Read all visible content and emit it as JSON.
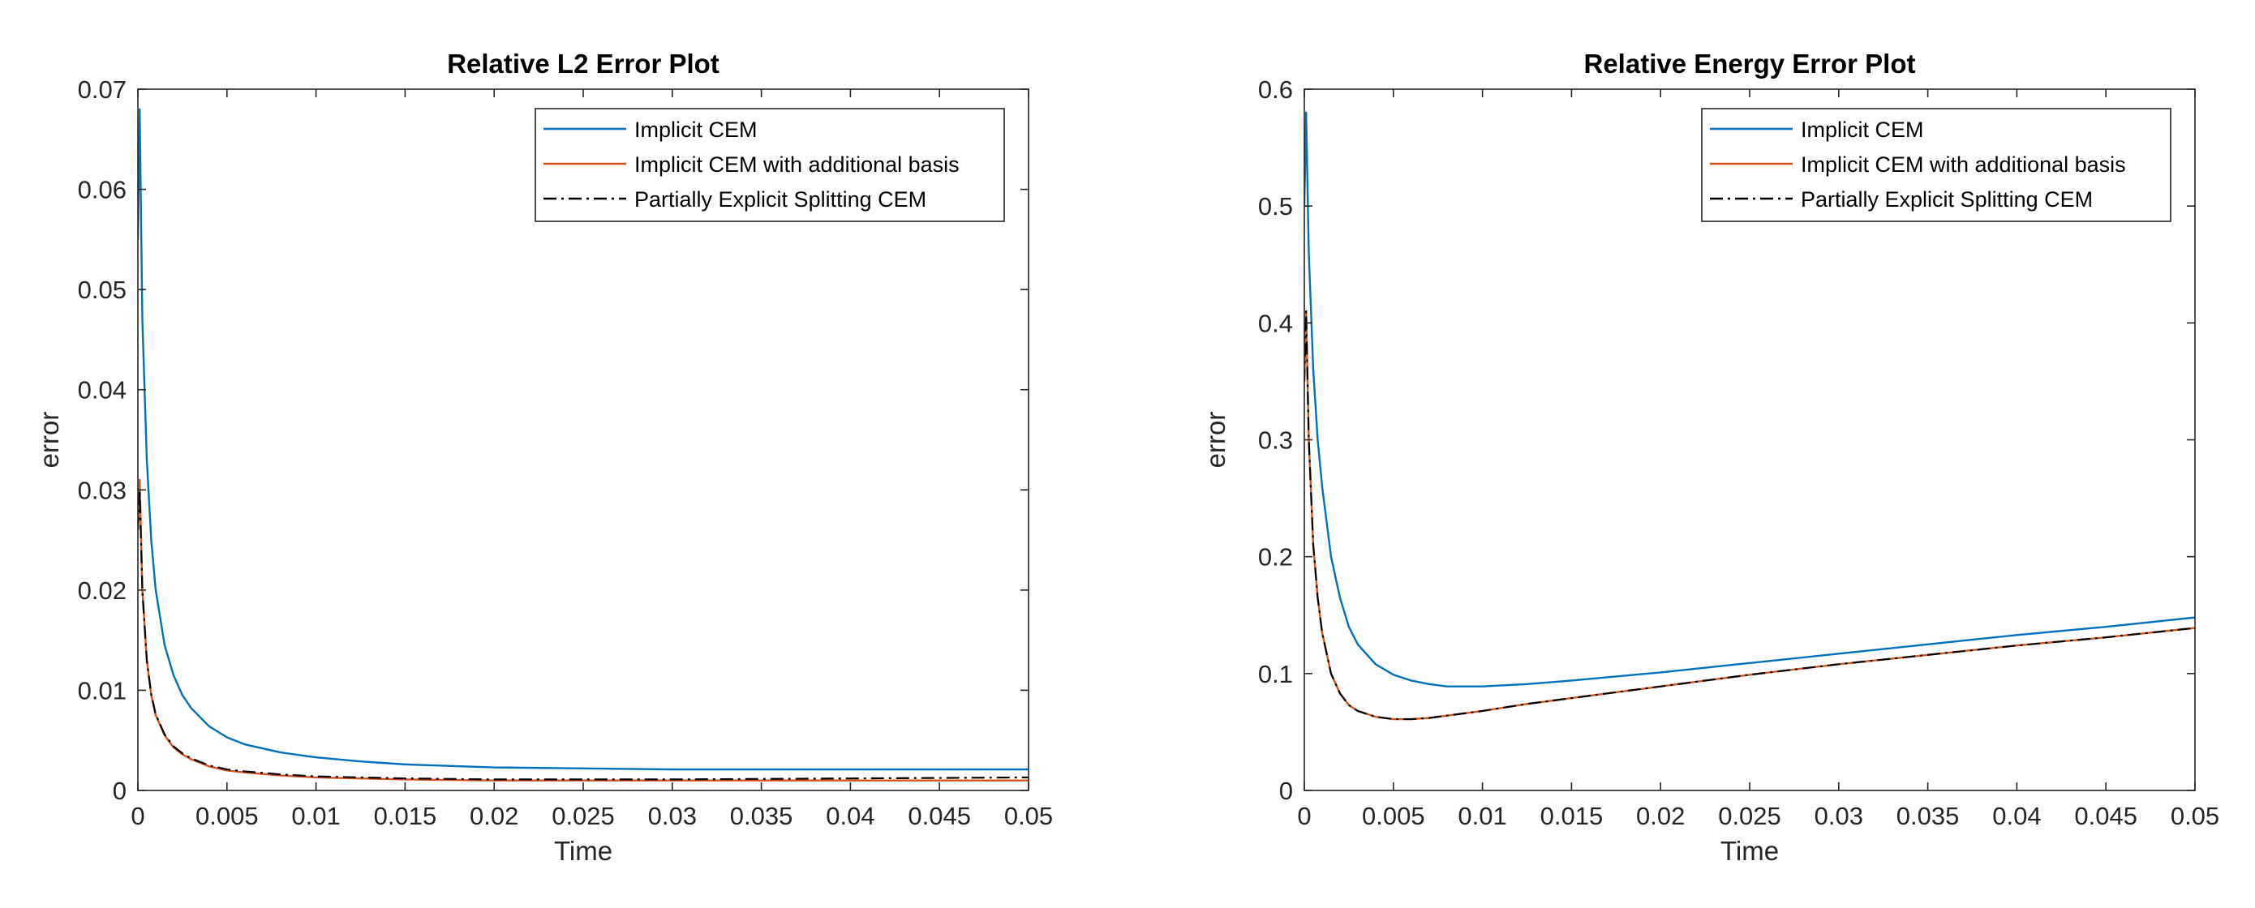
{
  "figure": {
    "charts": [
      {
        "title": "Relative L2 Error Plot",
        "xlabel": "Time",
        "ylabel": "error"
      },
      {
        "title": "Relative Energy Error Plot",
        "xlabel": "Time",
        "ylabel": "error"
      }
    ]
  },
  "chart_data": [
    {
      "type": "line",
      "title": "Relative L2 Error Plot",
      "xlabel": "Time",
      "ylabel": "error",
      "xlim": [
        0,
        0.05
      ],
      "ylim": [
        0,
        0.07
      ],
      "xticks": [
        0,
        0.005,
        0.01,
        0.015,
        0.02,
        0.025,
        0.03,
        0.035,
        0.04,
        0.045,
        0.05
      ],
      "xtick_labels": [
        "0",
        "0.005",
        "0.01",
        "0.015",
        "0.02",
        "0.025",
        "0.03",
        "0.035",
        "0.04",
        "0.045",
        "0.05"
      ],
      "yticks": [
        0,
        0.01,
        0.02,
        0.03,
        0.04,
        0.05,
        0.06,
        0.07
      ],
      "ytick_labels": [
        "0",
        "0.01",
        "0.02",
        "0.03",
        "0.04",
        "0.05",
        "0.06",
        "0.07"
      ],
      "grid": false,
      "legend_position": "top-right",
      "series": [
        {
          "name": "Implicit CEM",
          "color": "#0072BD",
          "style": "solid",
          "x": [
            0,
            0.0001,
            0.00025,
            0.0005,
            0.00075,
            0.001,
            0.0015,
            0.002,
            0.0025,
            0.003,
            0.004,
            0.005,
            0.006,
            0.008,
            0.01,
            0.0125,
            0.015,
            0.02,
            0.025,
            0.03,
            0.04,
            0.05
          ],
          "y": [
            0.055,
            0.068,
            0.047,
            0.033,
            0.025,
            0.02,
            0.0145,
            0.0115,
            0.0095,
            0.0082,
            0.0064,
            0.0053,
            0.0046,
            0.0038,
            0.0033,
            0.0029,
            0.0026,
            0.0023,
            0.0022,
            0.0021,
            0.0021,
            0.0021
          ]
        },
        {
          "name": "Implicit CEM with additional basis",
          "color": "#D95319",
          "style": "solid",
          "x": [
            0,
            0.0001,
            0.00025,
            0.0005,
            0.00075,
            0.001,
            0.0015,
            0.002,
            0.0025,
            0.003,
            0.004,
            0.005,
            0.006,
            0.008,
            0.01,
            0.0125,
            0.015,
            0.02,
            0.025,
            0.03,
            0.04,
            0.05
          ],
          "y": [
            0.026,
            0.031,
            0.02,
            0.013,
            0.0095,
            0.0075,
            0.0055,
            0.0043,
            0.0036,
            0.0031,
            0.0024,
            0.002,
            0.0018,
            0.0015,
            0.0013,
            0.0012,
            0.0011,
            0.001,
            0.001,
            0.001,
            0.001,
            0.001
          ]
        },
        {
          "name": "Partially Explicit Splitting CEM",
          "color": "#000000",
          "style": "dashdot",
          "x": [
            0,
            0.0001,
            0.00025,
            0.0005,
            0.00075,
            0.001,
            0.0015,
            0.002,
            0.0025,
            0.003,
            0.004,
            0.005,
            0.006,
            0.008,
            0.01,
            0.0125,
            0.015,
            0.02,
            0.025,
            0.03,
            0.04,
            0.05
          ],
          "y": [
            0.026,
            0.03,
            0.02,
            0.013,
            0.0096,
            0.0076,
            0.0056,
            0.0044,
            0.0037,
            0.0032,
            0.0025,
            0.0021,
            0.0019,
            0.0016,
            0.0014,
            0.0013,
            0.0012,
            0.0011,
            0.0011,
            0.0011,
            0.0012,
            0.0013
          ]
        }
      ]
    },
    {
      "type": "line",
      "title": "Relative Energy Error Plot",
      "xlabel": "Time",
      "ylabel": "error",
      "xlim": [
        0,
        0.05
      ],
      "ylim": [
        0,
        0.6
      ],
      "xticks": [
        0,
        0.005,
        0.01,
        0.015,
        0.02,
        0.025,
        0.03,
        0.035,
        0.04,
        0.045,
        0.05
      ],
      "xtick_labels": [
        "0",
        "0.005",
        "0.01",
        "0.015",
        "0.02",
        "0.025",
        "0.03",
        "0.035",
        "0.04",
        "0.045",
        "0.05"
      ],
      "yticks": [
        0,
        0.1,
        0.2,
        0.3,
        0.4,
        0.5,
        0.6
      ],
      "ytick_labels": [
        "0",
        "0.1",
        "0.2",
        "0.3",
        "0.4",
        "0.5",
        "0.6"
      ],
      "grid": false,
      "legend_position": "top-right",
      "series": [
        {
          "name": "Implicit CEM",
          "color": "#0072BD",
          "style": "solid",
          "x": [
            0,
            0.0001,
            0.00025,
            0.0005,
            0.00075,
            0.001,
            0.0015,
            0.002,
            0.0025,
            0.003,
            0.004,
            0.005,
            0.006,
            0.007,
            0.008,
            0.009,
            0.01,
            0.0125,
            0.015,
            0.02,
            0.025,
            0.03,
            0.035,
            0.04,
            0.045,
            0.05
          ],
          "y": [
            0.5,
            0.58,
            0.46,
            0.36,
            0.3,
            0.26,
            0.2,
            0.165,
            0.14,
            0.125,
            0.108,
            0.099,
            0.094,
            0.091,
            0.089,
            0.089,
            0.089,
            0.091,
            0.094,
            0.101,
            0.109,
            0.117,
            0.125,
            0.133,
            0.14,
            0.148
          ]
        },
        {
          "name": "Implicit CEM with additional basis",
          "color": "#D95319",
          "style": "solid",
          "x": [
            0,
            0.0001,
            0.00025,
            0.0005,
            0.00075,
            0.001,
            0.0015,
            0.002,
            0.0025,
            0.003,
            0.004,
            0.005,
            0.006,
            0.007,
            0.008,
            0.009,
            0.01,
            0.0125,
            0.015,
            0.02,
            0.025,
            0.03,
            0.035,
            0.04,
            0.045,
            0.05
          ],
          "y": [
            0.35,
            0.41,
            0.3,
            0.21,
            0.165,
            0.135,
            0.1,
            0.083,
            0.073,
            0.068,
            0.063,
            0.061,
            0.061,
            0.062,
            0.064,
            0.066,
            0.068,
            0.074,
            0.079,
            0.089,
            0.099,
            0.108,
            0.116,
            0.124,
            0.131,
            0.139
          ]
        },
        {
          "name": "Partially Explicit Splitting CEM",
          "color": "#000000",
          "style": "dashdot",
          "x": [
            0,
            0.0001,
            0.00025,
            0.0005,
            0.00075,
            0.001,
            0.0015,
            0.002,
            0.0025,
            0.003,
            0.004,
            0.005,
            0.006,
            0.007,
            0.008,
            0.009,
            0.01,
            0.0125,
            0.015,
            0.02,
            0.025,
            0.03,
            0.035,
            0.04,
            0.045,
            0.05
          ],
          "y": [
            0.35,
            0.41,
            0.3,
            0.21,
            0.165,
            0.135,
            0.1,
            0.083,
            0.073,
            0.068,
            0.063,
            0.061,
            0.061,
            0.062,
            0.064,
            0.066,
            0.068,
            0.074,
            0.079,
            0.089,
            0.099,
            0.108,
            0.116,
            0.124,
            0.131,
            0.139
          ]
        }
      ]
    }
  ]
}
